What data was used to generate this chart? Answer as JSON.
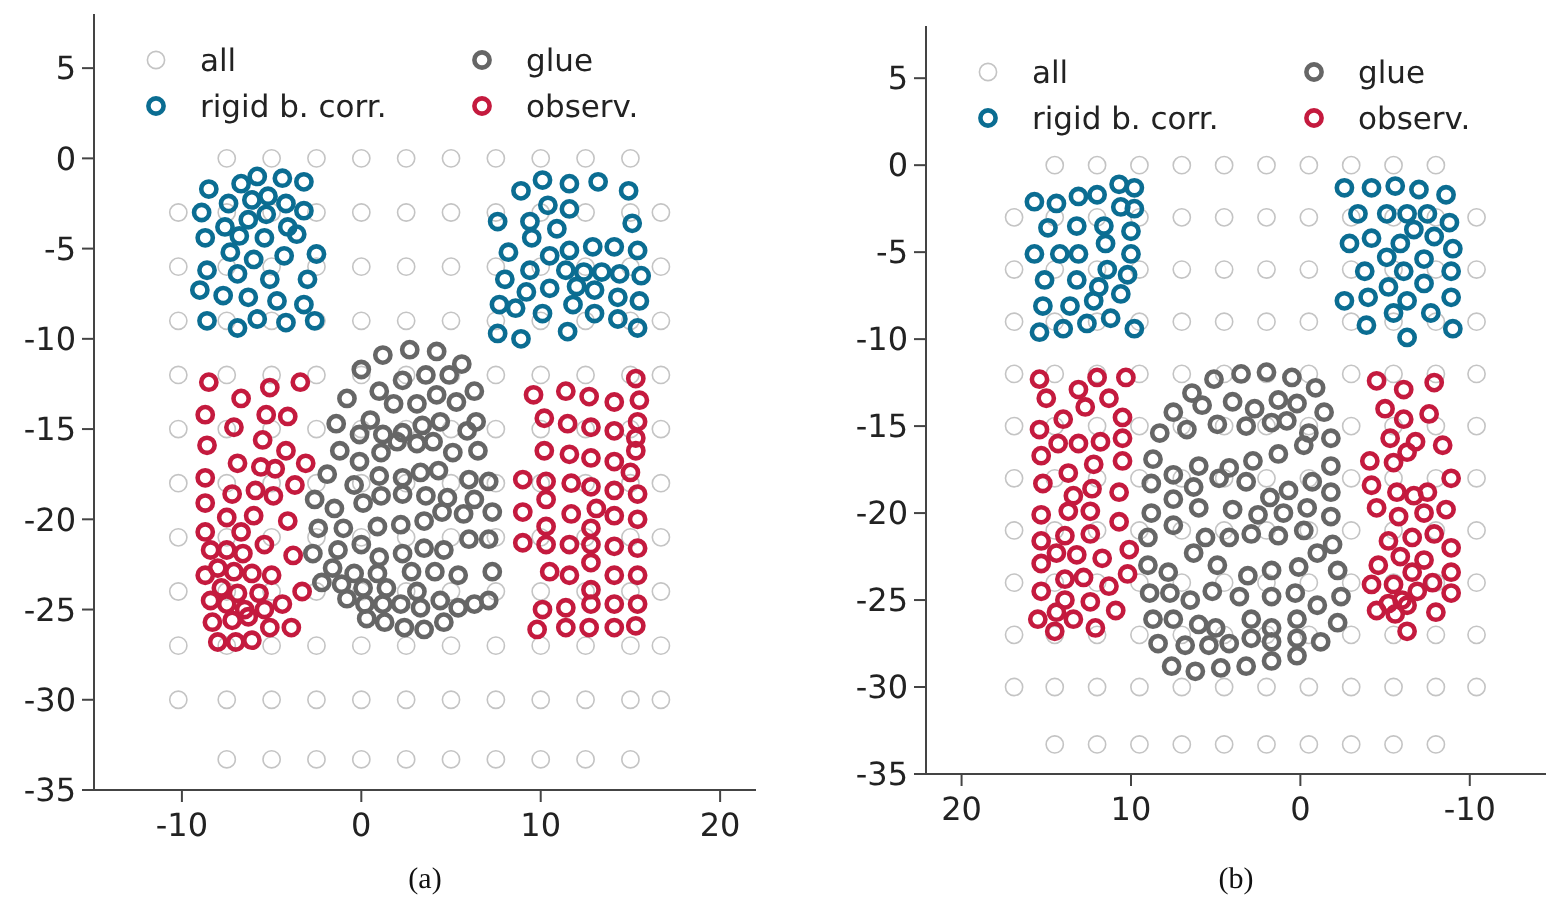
{
  "chart_data": [
    {
      "type": "scatter",
      "title": "(a)",
      "xlim": [
        -14.9,
        22
      ],
      "ylim": [
        -35,
        8
      ],
      "xticks": [
        -10,
        0,
        10,
        20
      ],
      "yticks": [
        5,
        0,
        -5,
        -10,
        -15,
        -20,
        -25,
        -30,
        -35
      ],
      "legend": "top",
      "marker": "circle",
      "series": [
        {
          "name": "all",
          "color": "#c4c4c4",
          "x": [
            -7.5,
            -5,
            -2.5,
            0,
            2.5,
            5,
            7.5,
            10,
            12.5,
            15,
            -10.2,
            -7.5,
            -5,
            -2.5,
            0,
            2.5,
            5,
            7.5,
            10,
            12.5,
            15,
            16.7,
            -10.2,
            -7.5,
            -5,
            -2.5,
            0,
            2.5,
            5,
            7.5,
            10,
            12.5,
            15,
            16.7,
            -10.2,
            -7.5,
            -5,
            -2.5,
            0,
            2.5,
            5,
            7.5,
            10,
            12.5,
            15,
            16.7,
            -10.2,
            -7.5,
            -5,
            -2.5,
            0,
            2.5,
            5,
            7.5,
            10,
            12.5,
            15,
            16.7,
            -10.2,
            -7.5,
            -5,
            -2.5,
            0,
            2.5,
            5,
            7.5,
            10,
            12.5,
            15,
            16.7,
            -10.2,
            -7.5,
            -5,
            -2.5,
            0,
            2.5,
            5,
            7.5,
            10,
            12.5,
            15,
            16.7,
            -10.2,
            -7.5,
            -5,
            -2.5,
            0,
            2.5,
            5,
            7.5,
            10,
            12.5,
            15,
            16.7,
            -10.2,
            -7.5,
            -5,
            -2.5,
            0,
            2.5,
            5,
            7.5,
            10,
            12.5,
            15,
            16.7,
            -10.2,
            -7.5,
            -5,
            -2.5,
            0,
            2.5,
            5,
            7.5,
            10,
            12.5,
            15,
            16.7,
            -10.2,
            -7.5,
            -5,
            -2.5,
            0,
            2.5,
            5,
            7.5,
            10,
            12.5,
            15,
            16.7,
            -7.5,
            -5,
            -2.5,
            0,
            2.5,
            5,
            7.5,
            10,
            12.5,
            15
          ],
          "values": [
            0,
            0,
            0,
            0,
            0,
            0,
            0,
            0,
            0,
            0,
            -3,
            -3,
            -3,
            -3,
            -3,
            -3,
            -3,
            -3,
            -3,
            -3,
            -3,
            -3,
            -6,
            -6,
            -6,
            -6,
            -6,
            -6,
            -6,
            -6,
            -6,
            -6,
            -6,
            -6,
            -9,
            -9,
            -9,
            -9,
            -9,
            -9,
            -9,
            -9,
            -9,
            -9,
            -9,
            -9,
            -12,
            -12,
            -12,
            -12,
            -12,
            -12,
            -12,
            -12,
            -12,
            -12,
            -12,
            -12,
            -15,
            -15,
            -15,
            -15,
            -15,
            -15,
            -15,
            -15,
            -15,
            -15,
            -15,
            -15,
            -18,
            -18,
            -18,
            -18,
            -18,
            -18,
            -18,
            -18,
            -18,
            -18,
            -18,
            -18,
            -21,
            -21,
            -21,
            -21,
            -21,
            -21,
            -21,
            -21,
            -21,
            -21,
            -21,
            -21,
            -24,
            -24,
            -24,
            -24,
            -24,
            -24,
            -24,
            -24,
            -24,
            -24,
            -24,
            -24,
            -27,
            -27,
            -27,
            -27,
            -27,
            -27,
            -27,
            -27,
            -27,
            -27,
            -27,
            -27,
            -30,
            -30,
            -30,
            -30,
            -30,
            -30,
            -30,
            -30,
            -30,
            -30,
            -30,
            -30,
            -33.3,
            -33.3,
            -33.3,
            -33.3,
            -33.3,
            -33.3,
            -33.3,
            -33.3,
            -33.3,
            -33.3
          ]
        },
        {
          "name": "rigid b. corr.",
          "color": "#0b6d92",
          "x": [
            -8.5,
            -6.7,
            -5.8,
            -4.4,
            -3.2,
            -8.9,
            -7.4,
            -6.1,
            -5.2,
            -4.2,
            -3.2,
            -7.6,
            -6.3,
            -5.3,
            -4.1,
            -8.7,
            -6.8,
            -5.4,
            -3.6,
            -7.3,
            -6.0,
            -4.3,
            -2.5,
            -8.6,
            -6.9,
            -5.1,
            -3.0,
            -9.0,
            -7.7,
            -6.3,
            -4.7,
            -3.2,
            -8.6,
            -6.9,
            -5.8,
            -4.2,
            -2.6,
            8.9,
            10.1,
            11.6,
            13.2,
            14.9,
            10.4,
            11.6,
            7.6,
            9.4,
            10.9,
            15.1,
            9.5,
            8.2,
            10.5,
            11.6,
            12.9,
            14.1,
            15.4,
            8.0,
            9.4,
            11.4,
            12.4,
            13.4,
            14.4,
            15.6,
            9.2,
            10.5,
            12.0,
            13.0,
            14.3,
            15.5,
            7.7,
            8.6,
            10.1,
            11.8,
            13.0,
            14.3,
            15.4,
            7.6,
            8.9,
            11.5
          ],
          "values": [
            -1.7,
            -1.4,
            -1.0,
            -1.1,
            -1.3,
            -3.0,
            -2.5,
            -2.3,
            -2.1,
            -2.5,
            -2.9,
            -3.8,
            -3.4,
            -3.1,
            -3.8,
            -4.4,
            -4.3,
            -4.4,
            -4.2,
            -5.2,
            -5.6,
            -5.4,
            -5.3,
            -6.2,
            -6.4,
            -6.7,
            -6.7,
            -7.3,
            -7.6,
            -7.7,
            -7.9,
            -8.1,
            -9.0,
            -9.4,
            -8.9,
            -9.1,
            -9.0,
            -1.8,
            -1.2,
            -1.4,
            -1.3,
            -1.8,
            -2.6,
            -2.8,
            -3.5,
            -3.5,
            -3.9,
            -3.6,
            -4.4,
            -5.2,
            -5.4,
            -5.1,
            -4.9,
            -4.9,
            -5.1,
            -6.7,
            -6.2,
            -6.2,
            -6.3,
            -6.3,
            -6.4,
            -6.5,
            -7.4,
            -7.2,
            -7.1,
            -7.3,
            -7.7,
            -7.9,
            -8.1,
            -8.3,
            -8.6,
            -8.1,
            -8.6,
            -8.9,
            -9.4,
            -9.7,
            -10.0,
            -9.6
          ]
        },
        {
          "name": "glue",
          "color": "#666666",
          "x": [
            1.2,
            2.7,
            4.2,
            5.6,
            0.0,
            1.0,
            2.3,
            3.6,
            4.9,
            6.3,
            -0.8,
            0.5,
            1.8,
            3.1,
            4.2,
            5.3,
            6.4,
            -1.4,
            -0.1,
            1.2,
            2.3,
            3.4,
            4.4,
            5.9,
            6.5,
            -1.2,
            -0.1,
            1.1,
            2.0,
            3.1,
            4.0,
            5.1,
            7.1,
            -1.9,
            -0.4,
            1.0,
            2.3,
            3.3,
            4.3,
            6.0,
            -2.6,
            -1.5,
            0.1,
            1.1,
            2.3,
            3.6,
            4.8,
            6.3,
            7.3,
            -2.4,
            -1.0,
            0.9,
            2.2,
            3.5,
            4.5,
            5.7,
            7.1,
            -2.7,
            -1.3,
            0.0,
            1.0,
            2.3,
            3.5,
            4.6,
            6.0,
            -1.6,
            -0.4,
            0.9,
            2.8,
            4.1,
            5.4,
            7.3,
            -2.2,
            -1.1,
            0.1,
            1.4,
            3.1,
            -0.8,
            0.2,
            1.2,
            2.2,
            3.3,
            4.4,
            5.4,
            6.3,
            7.1,
            0.3,
            1.3,
            2.4,
            3.5,
            4.6
          ],
          "values": [
            -10.9,
            -10.6,
            -10.7,
            -11.4,
            -11.7,
            -12.9,
            -12.3,
            -12.0,
            -12.0,
            -12.9,
            -13.3,
            -14.5,
            -13.6,
            -13.6,
            -13.1,
            -13.5,
            -14.6,
            -14.7,
            -15.3,
            -15.3,
            -15.2,
            -14.8,
            -14.6,
            -15.1,
            -16.2,
            -16.2,
            -16.8,
            -16.3,
            -15.7,
            -15.8,
            -15.7,
            -16.3,
            -17.9,
            -17.5,
            -18.1,
            -17.6,
            -17.7,
            -17.4,
            -17.3,
            -17.8,
            -18.9,
            -19.4,
            -19.1,
            -18.7,
            -18.6,
            -18.7,
            -18.8,
            -18.9,
            -19.6,
            -20.5,
            -20.5,
            -20.4,
            -20.3,
            -20.1,
            -19.6,
            -19.7,
            -21.1,
            -21.9,
            -21.7,
            -21.4,
            -22.1,
            -21.9,
            -21.6,
            -21.7,
            -21.1,
            -22.7,
            -23.0,
            -23.0,
            -22.9,
            -22.9,
            -23.1,
            -22.9,
            -23.5,
            -23.6,
            -23.8,
            -23.8,
            -24.0,
            -24.4,
            -24.7,
            -24.7,
            -24.7,
            -24.9,
            -24.5,
            -24.9,
            -24.7,
            -24.5,
            -25.5,
            -25.7,
            -26.0,
            -26.1,
            -25.7
          ]
        },
        {
          "name": "observ.",
          "color": "#c41a3e",
          "x": [
            -8.5,
            -6.7,
            -5.1,
            -3.4,
            -8.7,
            -7.1,
            -5.3,
            -4.1,
            -8.6,
            -5.5,
            -6.9,
            -5.6,
            -4.8,
            -4.2,
            -3.1,
            -8.7,
            -7.2,
            -5.9,
            -4.9,
            -3.7,
            -8.7,
            -7.5,
            -6.0,
            -4.1,
            -8.7,
            -6.7,
            -5.4,
            -3.8,
            -8.4,
            -7.5,
            -6.6,
            -8.0,
            -7.1,
            -6.1,
            -5.0,
            -8.7,
            -7.8,
            -6.9,
            -5.7,
            -8.4,
            -7.5,
            -6.5,
            -5.4,
            -4.4,
            -3.3,
            -8.3,
            -7.2,
            -6.3,
            -5.1,
            -3.9,
            -8.0,
            -7.0,
            -6.1,
            9.6,
            11.4,
            12.7,
            14.1,
            15.3,
            15.5,
            10.2,
            11.5,
            12.8,
            14.1,
            15.4,
            15.3,
            10.2,
            11.6,
            12.8,
            14.1,
            15.3,
            15.0,
            9.0,
            10.3,
            11.7,
            12.8,
            14.1,
            15.4,
            10.3,
            9.0,
            11.7,
            13.1,
            14.1,
            15.4,
            10.3,
            12.8,
            9.0,
            10.3,
            11.6,
            12.8,
            14.1,
            15.4,
            12.8,
            10.5,
            11.6,
            14.1,
            15.4,
            12.8,
            10.1,
            11.4,
            12.8,
            14.1,
            15.4,
            9.8,
            11.4,
            12.7,
            14.1,
            15.3
          ],
          "values": [
            -12.4,
            -13.3,
            -12.7,
            -12.4,
            -14.2,
            -14.9,
            -14.2,
            -14.3,
            -15.9,
            -15.6,
            -16.9,
            -17.1,
            -17.2,
            -16.2,
            -16.9,
            -17.7,
            -18.6,
            -18.4,
            -18.7,
            -18.1,
            -19.1,
            -19.9,
            -19.8,
            -20.1,
            -20.7,
            -20.7,
            -21.4,
            -22.0,
            -21.7,
            -21.7,
            -21.9,
            -22.7,
            -22.9,
            -23.0,
            -23.1,
            -23.1,
            -23.8,
            -24.1,
            -24.1,
            -24.5,
            -24.7,
            -25.0,
            -25.0,
            -24.7,
            -24.0,
            -25.7,
            -25.6,
            -25.4,
            -26.0,
            -26.0,
            -26.8,
            -26.8,
            -26.7,
            -13.1,
            -12.9,
            -13.2,
            -13.5,
            -12.2,
            -13.4,
            -14.4,
            -14.7,
            -14.9,
            -15.1,
            -14.6,
            -15.5,
            -16.2,
            -16.4,
            -16.6,
            -16.8,
            -16.2,
            -17.4,
            -17.8,
            -17.9,
            -18.0,
            -18.2,
            -18.4,
            -18.6,
            -18.9,
            -19.6,
            -19.7,
            -19.4,
            -19.8,
            -20.0,
            -20.4,
            -20.5,
            -21.3,
            -21.4,
            -21.4,
            -21.4,
            -21.5,
            -21.6,
            -22.4,
            -22.9,
            -23.1,
            -23.1,
            -23.1,
            -23.9,
            -25.0,
            -24.9,
            -24.7,
            -24.7,
            -24.7,
            -26.1,
            -26.0,
            -26.0,
            -26.0,
            -25.9
          ]
        }
      ]
    },
    {
      "type": "scatter",
      "title": "(b)",
      "xlim": [
        22.1,
        -14.5
      ],
      "ylim": [
        -35,
        8
      ],
      "xticks": [
        20,
        10,
        0,
        -10
      ],
      "yticks": [
        5,
        0,
        -5,
        -10,
        -15,
        -20,
        -25,
        -30,
        -35
      ],
      "legend": "top",
      "marker": "circle",
      "series": [
        {
          "name": "all",
          "color": "#c4c4c4",
          "x": [
            14.5,
            12,
            9.5,
            7,
            4.5,
            2,
            -0.5,
            -3,
            -5.5,
            -8,
            16.9,
            14.5,
            12,
            9.5,
            7,
            4.5,
            2,
            -0.5,
            -3,
            -5.5,
            -8,
            -10.4,
            16.9,
            14.5,
            12,
            9.5,
            7,
            4.5,
            2,
            -0.5,
            -3,
            -5.5,
            -8,
            -10.4,
            16.9,
            14.5,
            12,
            9.5,
            7,
            4.5,
            2,
            -0.5,
            -3,
            -5.5,
            -8,
            -10.4,
            16.9,
            14.5,
            12,
            9.5,
            7,
            4.5,
            2,
            -0.5,
            -3,
            -5.5,
            -8,
            -10.4,
            16.9,
            14.5,
            12,
            9.5,
            7,
            4.5,
            2,
            -0.5,
            -3,
            -5.5,
            -8,
            -10.4,
            16.9,
            14.5,
            12,
            9.5,
            7,
            4.5,
            2,
            -0.5,
            -3,
            -5.5,
            -8,
            -10.4,
            16.9,
            14.5,
            12,
            9.5,
            7,
            4.5,
            2,
            -0.5,
            -3,
            -5.5,
            -8,
            -10.4,
            16.9,
            14.5,
            12,
            9.5,
            7,
            4.5,
            2,
            -0.5,
            -3,
            -5.5,
            -8,
            -10.4,
            16.9,
            14.5,
            12,
            9.5,
            7,
            4.5,
            2,
            -0.5,
            -3,
            -5.5,
            -8,
            -10.4,
            16.9,
            14.5,
            12,
            9.5,
            7,
            4.5,
            2,
            -0.5,
            -3,
            -5.5,
            -8,
            -10.4,
            14.5,
            12,
            9.5,
            7,
            4.5,
            2,
            -0.5,
            -3,
            -5.5,
            -8
          ],
          "values": [
            0,
            0,
            0,
            0,
            0,
            0,
            0,
            0,
            0,
            0,
            -3,
            -3,
            -3,
            -3,
            -3,
            -3,
            -3,
            -3,
            -3,
            -3,
            -3,
            -3,
            -6,
            -6,
            -6,
            -6,
            -6,
            -6,
            -6,
            -6,
            -6,
            -6,
            -6,
            -6,
            -9,
            -9,
            -9,
            -9,
            -9,
            -9,
            -9,
            -9,
            -9,
            -9,
            -9,
            -9,
            -12,
            -12,
            -12,
            -12,
            -12,
            -12,
            -12,
            -12,
            -12,
            -12,
            -12,
            -12,
            -15,
            -15,
            -15,
            -15,
            -15,
            -15,
            -15,
            -15,
            -15,
            -15,
            -15,
            -15,
            -18,
            -18,
            -18,
            -18,
            -18,
            -18,
            -18,
            -18,
            -18,
            -18,
            -18,
            -18,
            -21,
            -21,
            -21,
            -21,
            -21,
            -21,
            -21,
            -21,
            -21,
            -21,
            -21,
            -21,
            -24,
            -24,
            -24,
            -24,
            -24,
            -24,
            -24,
            -24,
            -24,
            -24,
            -24,
            -24,
            -27,
            -27,
            -27,
            -27,
            -27,
            -27,
            -27,
            -27,
            -27,
            -27,
            -27,
            -27,
            -30,
            -30,
            -30,
            -30,
            -30,
            -30,
            -30,
            -30,
            -30,
            -30,
            -30,
            -30,
            -33.3,
            -33.3,
            -33.3,
            -33.3,
            -33.3,
            -33.3,
            -33.3,
            -33.3,
            -33.3,
            -33.3
          ]
        },
        {
          "name": "rigid b. corr.",
          "color": "#0b6d92",
          "x": [
            15.7,
            14.4,
            13.1,
            12.0,
            10.7,
            9.8,
            14.9,
            13.2,
            11.6,
            10.6,
            9.8,
            15.7,
            14.2,
            13.1,
            11.5,
            10.0,
            15.1,
            13.2,
            11.4,
            10.2,
            15.2,
            13.6,
            12.2,
            11.9,
            10.6,
            15.4,
            14.0,
            12.6,
            11.2,
            9.8,
            10.0,
            -2.6,
            -4.2,
            -5.6,
            -7.0,
            -8.6,
            -3.4,
            -5.1,
            -6.3,
            -7.5,
            -8.8,
            -2.9,
            -4.2,
            -5.9,
            -7.9,
            -9.0,
            -5.1,
            -7.3,
            -3.8,
            -6.1,
            -8.9,
            -2.6,
            -4.0,
            -5.2,
            -6.3,
            -7.3,
            -8.9,
            -5.5,
            -7.7,
            -3.9,
            -6.3,
            -9.0,
            -6.7
          ],
          "values": [
            -2.1,
            -2.2,
            -1.8,
            -1.7,
            -1.1,
            -1.3,
            -3.6,
            -3.5,
            -3.5,
            -2.4,
            -2.5,
            -5.1,
            -5.1,
            -5.1,
            -4.5,
            -3.8,
            -6.6,
            -6.6,
            -6.0,
            -6.3,
            -8.1,
            -8.1,
            -7.8,
            -7.0,
            -7.4,
            -9.6,
            -9.4,
            -9.1,
            -8.8,
            -9.4,
            -5.1,
            -1.3,
            -1.3,
            -1.2,
            -1.4,
            -1.7,
            -2.8,
            -2.8,
            -2.8,
            -2.8,
            -3.3,
            -4.5,
            -4.2,
            -4.5,
            -4.1,
            -4.8,
            -5.3,
            -5.4,
            -6.1,
            -6.1,
            -6.1,
            -7.8,
            -7.6,
            -7.0,
            -7.8,
            -6.8,
            -7.6,
            -8.5,
            -8.5,
            -9.2,
            -9.9,
            -9.4,
            -3.7
          ]
        },
        {
          "name": "glue",
          "color": "#666666",
          "x": [
            5.1,
            3.5,
            2.0,
            0.5,
            -0.9,
            6.4,
            4.0,
            1.3,
            -1.4,
            7.5,
            5.8,
            2.7,
            0.2,
            8.3,
            6.7,
            4.9,
            3.2,
            1.7,
            0.8,
            -0.5,
            -1.8,
            8.7,
            7.5,
            6.0,
            4.2,
            2.8,
            1.3,
            -0.2,
            -1.8,
            8.8,
            6.3,
            4.8,
            3.2,
            1.8,
            0.7,
            -0.7,
            -1.8,
            8.8,
            7.5,
            6.0,
            4.0,
            2.5,
            1.0,
            -0.4,
            -1.8,
            9.0,
            7.5,
            5.6,
            4.2,
            2.9,
            1.3,
            -0.2,
            -1.9,
            9.0,
            7.8,
            6.3,
            4.9,
            3.1,
            1.7,
            0.1,
            -1.0,
            -2.2,
            8.9,
            7.7,
            6.5,
            5.2,
            3.6,
            1.7,
            0.3,
            -1.0,
            -2.4,
            8.7,
            7.5,
            6.0,
            5.0,
            2.9,
            1.7,
            0.2,
            -2.2,
            8.4,
            6.8,
            5.4,
            4.2,
            2.9,
            1.7,
            0.2,
            -1.2,
            7.6,
            6.2,
            4.7,
            3.2,
            1.7,
            0.2
          ],
          "values": [
            -12.3,
            -12.0,
            -11.9,
            -12.2,
            -12.8,
            -13.1,
            -13.6,
            -13.5,
            -14.2,
            -14.2,
            -13.8,
            -14.0,
            -13.7,
            -15.4,
            -15.2,
            -14.9,
            -15.0,
            -14.8,
            -14.7,
            -15.4,
            -15.7,
            -16.9,
            -17.8,
            -17.3,
            -17.4,
            -17.0,
            -16.6,
            -16.1,
            -17.3,
            -18.3,
            -18.5,
            -18.0,
            -18.2,
            -19.1,
            -18.7,
            -18.2,
            -18.8,
            -20.0,
            -19.2,
            -19.7,
            -19.8,
            -20.1,
            -20.0,
            -19.7,
            -20.2,
            -21.4,
            -20.7,
            -21.4,
            -21.4,
            -21.2,
            -21.3,
            -21.0,
            -21.8,
            -23.0,
            -23.4,
            -22.3,
            -23.0,
            -23.6,
            -23.3,
            -23.1,
            -22.3,
            -23.3,
            -24.6,
            -24.6,
            -25.0,
            -24.5,
            -24.8,
            -24.8,
            -24.6,
            -25.3,
            -24.8,
            -26.1,
            -26.1,
            -26.4,
            -26.6,
            -26.1,
            -26.6,
            -26.1,
            -26.3,
            -27.5,
            -27.6,
            -27.6,
            -27.5,
            -27.2,
            -27.4,
            -27.2,
            -27.4,
            -28.8,
            -29.1,
            -28.9,
            -28.8,
            -28.5,
            -28.2
          ]
        },
        {
          "name": "observ.",
          "color": "#c41a3e",
          "x": [
            15.4,
            10.3,
            12.0,
            13.1,
            15.0,
            12.7,
            11.3,
            14.0,
            10.5,
            15.4,
            14.3,
            13.1,
            11.8,
            10.5,
            15.3,
            12.2,
            10.5,
            13.7,
            15.2,
            12.3,
            13.4,
            10.7,
            15.3,
            13.7,
            12.4,
            10.7,
            15.3,
            13.9,
            12.4,
            13.2,
            14.4,
            15.3,
            11.7,
            10.1,
            10.2,
            13.9,
            12.8,
            11.3,
            15.3,
            13.9,
            12.4,
            10.9,
            15.5,
            14.4,
            13.4,
            12.1,
            14.5,
            -4.5,
            -6.1,
            -7.9,
            -5.0,
            -6.1,
            -7.6,
            -5.3,
            -6.8,
            -8.4,
            -6.3,
            -4.1,
            -5.5,
            -4.2,
            -5.7,
            -6.7,
            -7.5,
            -8.9,
            -4.5,
            -5.8,
            -7.3,
            -8.6,
            -5.2,
            -6.6,
            -7.9,
            -8.9,
            -4.6,
            -5.9,
            -7.3,
            -6.6,
            -8.9,
            -4.2,
            -5.5,
            -6.9,
            -7.8,
            -8.9,
            -4.5,
            -5.2,
            -6.0,
            -5.6,
            -6.3,
            -8.0,
            -6.3
          ],
          "values": [
            -12.3,
            -12.2,
            -12.2,
            -12.9,
            -13.4,
            -13.9,
            -13.4,
            -14.6,
            -14.5,
            -15.2,
            -16.0,
            -16.0,
            -15.9,
            -15.7,
            -16.7,
            -17.2,
            -17.0,
            -17.7,
            -18.3,
            -18.6,
            -19.0,
            -18.8,
            -20.1,
            -19.9,
            -19.9,
            -20.5,
            -21.6,
            -21.3,
            -21.2,
            -22.4,
            -22.3,
            -22.9,
            -22.6,
            -22.1,
            -23.5,
            -23.8,
            -23.7,
            -24.2,
            -24.5,
            -25.0,
            -25.1,
            -25.6,
            -26.1,
            -25.7,
            -26.1,
            -26.6,
            -26.8,
            -12.4,
            -12.9,
            -12.5,
            -14.0,
            -14.6,
            -14.3,
            -15.7,
            -15.9,
            -16.1,
            -16.5,
            -17.0,
            -17.1,
            -18.4,
            -18.8,
            -19.0,
            -18.8,
            -18.0,
            -19.7,
            -20.2,
            -20.0,
            -19.8,
            -21.6,
            -21.4,
            -21.2,
            -22.0,
            -23.0,
            -22.5,
            -22.7,
            -23.4,
            -23.4,
            -24.1,
            -24.1,
            -24.5,
            -24.0,
            -24.6,
            -25.6,
            -25.2,
            -25.0,
            -25.8,
            -25.3,
            -25.7,
            -26.8
          ]
        }
      ]
    }
  ]
}
